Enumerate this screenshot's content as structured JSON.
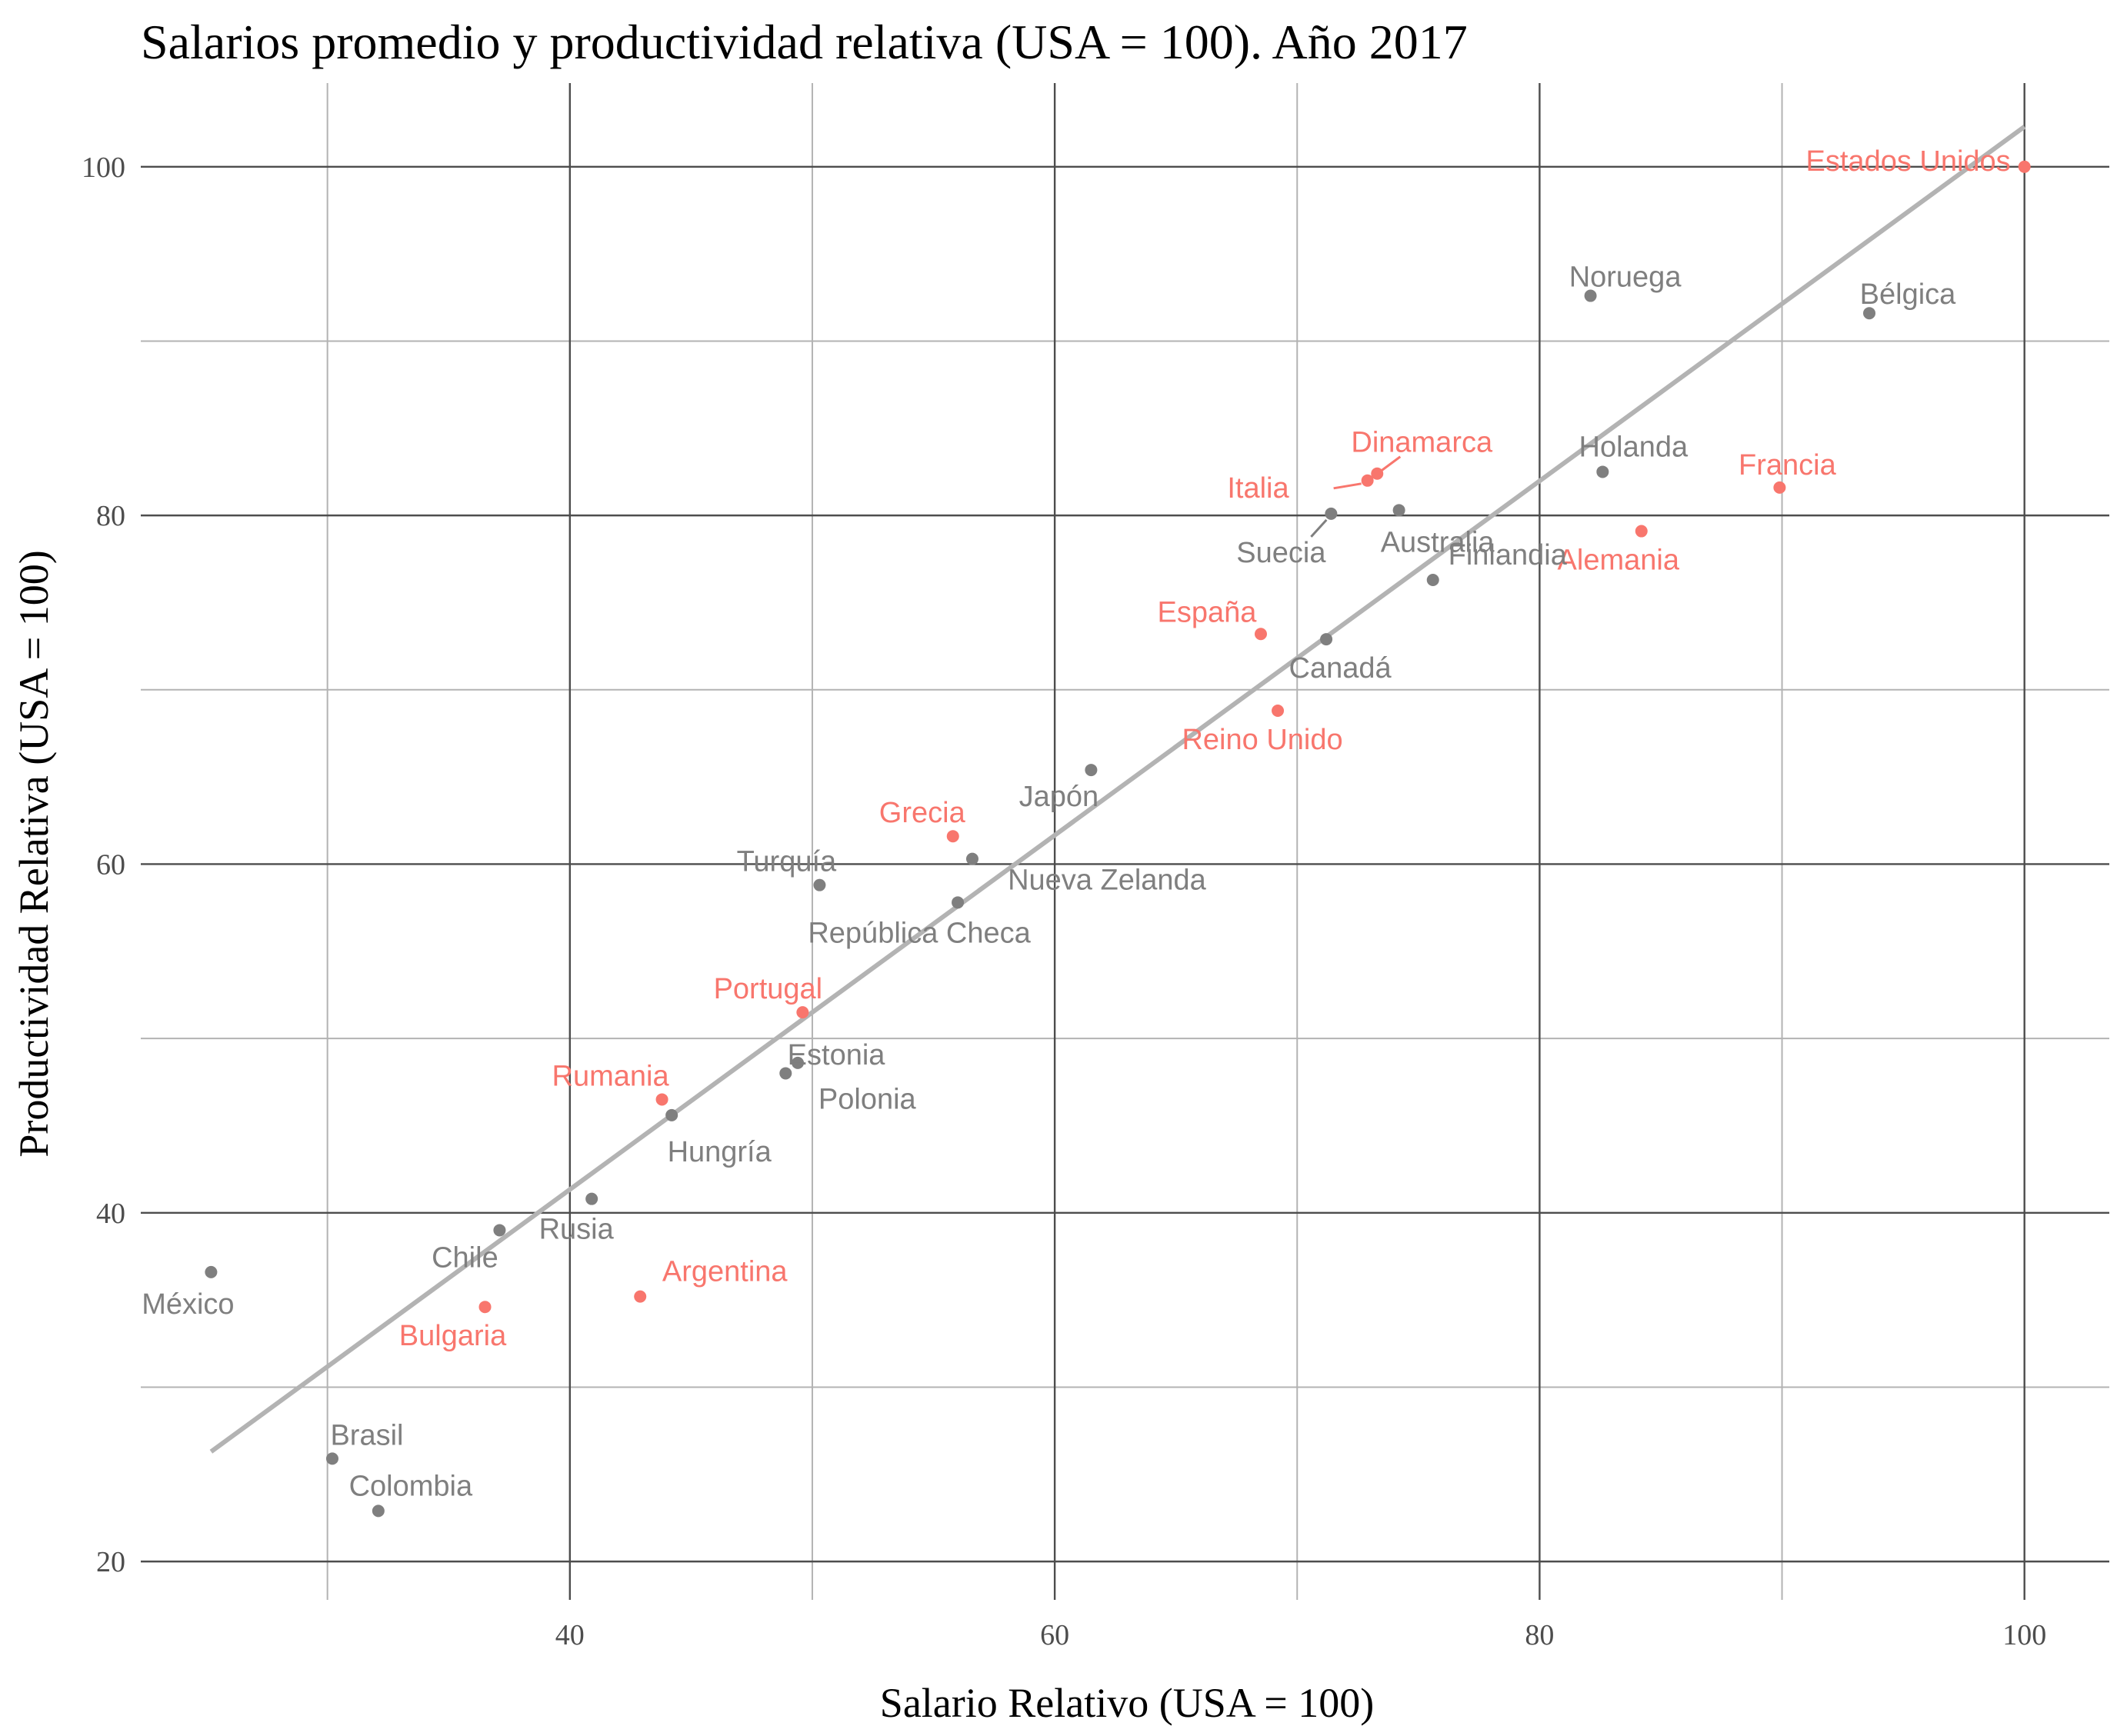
{
  "chart_data": {
    "type": "scatter",
    "title": "Salarios promedio y productividad relativa (USA = 100). Año 2017",
    "xlabel": "Salario Relativo (USA = 100)",
    "ylabel": "Productividad Relativa (USA = 100)",
    "xlim": [
      22.3,
      103.5
    ],
    "ylim": [
      17.8,
      104.8
    ],
    "x_ticks": [
      40,
      60,
      80,
      100
    ],
    "y_ticks": [
      20,
      40,
      60,
      80,
      100
    ],
    "x_minor": [
      30,
      50,
      70,
      90
    ],
    "y_minor": [
      30,
      50,
      70,
      90
    ],
    "grid": true,
    "colors": {
      "highlight": "#F8766D",
      "other": "#7F7F7F",
      "trend": "#B3B3B3",
      "major_grid": "#4D4D4D",
      "minor_grid": "#B3B3B3"
    },
    "trend_line": {
      "x": [
        25.2,
        100.0
      ],
      "y": [
        26.3,
        102.3
      ]
    },
    "points": [
      {
        "name": "Estados Unidos",
        "x": 100.0,
        "y": 100.0,
        "highlight": true
      },
      {
        "name": "Noruega",
        "x": 82.1,
        "y": 92.6,
        "highlight": false
      },
      {
        "name": "Bélgica",
        "x": 93.6,
        "y": 91.6,
        "highlight": false
      },
      {
        "name": "Dinamarca",
        "x": 73.3,
        "y": 82.4,
        "highlight": true
      },
      {
        "name": "Italia",
        "x": 72.9,
        "y": 82.0,
        "highlight": true
      },
      {
        "name": "Holanda",
        "x": 82.6,
        "y": 82.5,
        "highlight": false
      },
      {
        "name": "Francia",
        "x": 89.9,
        "y": 81.6,
        "highlight": true
      },
      {
        "name": "Australia",
        "x": 74.2,
        "y": 80.3,
        "highlight": false
      },
      {
        "name": "Suecia",
        "x": 71.4,
        "y": 80.1,
        "highlight": false
      },
      {
        "name": "Alemania",
        "x": 84.2,
        "y": 79.1,
        "highlight": true
      },
      {
        "name": "Finlandia",
        "x": 75.6,
        "y": 76.3,
        "highlight": false
      },
      {
        "name": "España",
        "x": 68.5,
        "y": 73.2,
        "highlight": true
      },
      {
        "name": "Canadá",
        "x": 71.2,
        "y": 72.9,
        "highlight": false
      },
      {
        "name": "Reino Unido",
        "x": 69.2,
        "y": 68.8,
        "highlight": true
      },
      {
        "name": "Japón",
        "x": 61.5,
        "y": 65.4,
        "highlight": false
      },
      {
        "name": "Grecia",
        "x": 55.8,
        "y": 61.6,
        "highlight": true
      },
      {
        "name": "Nueva Zelanda",
        "x": 56.6,
        "y": 60.3,
        "highlight": false
      },
      {
        "name": "Turquía",
        "x": 50.3,
        "y": 58.8,
        "highlight": false
      },
      {
        "name": "República Checa",
        "x": 56.0,
        "y": 57.8,
        "highlight": false
      },
      {
        "name": "Portugal",
        "x": 49.6,
        "y": 51.5,
        "highlight": true
      },
      {
        "name": "Estonia",
        "x": 49.4,
        "y": 48.6,
        "highlight": false
      },
      {
        "name": "Polonia",
        "x": 48.9,
        "y": 48.0,
        "highlight": false
      },
      {
        "name": "Rumania",
        "x": 43.8,
        "y": 46.5,
        "highlight": true
      },
      {
        "name": "Hungría",
        "x": 44.2,
        "y": 45.6,
        "highlight": false
      },
      {
        "name": "Rusia",
        "x": 40.9,
        "y": 40.8,
        "highlight": false
      },
      {
        "name": "Chile",
        "x": 37.1,
        "y": 39.0,
        "highlight": false
      },
      {
        "name": "México",
        "x": 25.2,
        "y": 36.6,
        "highlight": false
      },
      {
        "name": "Bulgaria",
        "x": 36.5,
        "y": 34.6,
        "highlight": true
      },
      {
        "name": "Argentina",
        "x": 42.9,
        "y": 35.2,
        "highlight": true
      },
      {
        "name": "Brasil",
        "x": 30.2,
        "y": 25.9,
        "highlight": false
      },
      {
        "name": "Colombia",
        "x": 32.1,
        "y": 22.9,
        "highlight": false
      }
    ]
  }
}
